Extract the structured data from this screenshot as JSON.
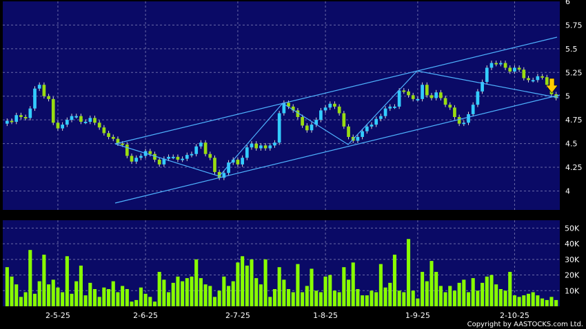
{
  "copyright": "Copyright by AASTOCKS.com Ltd.",
  "colors": {
    "background": "#000000",
    "panel": "#0a0a66",
    "grid": "#6a6aa8",
    "up_candle": "#33ccff",
    "down_candle": "#99dd11",
    "volume_bar": "#88ff00",
    "channel_line": "#4fb3ff",
    "arrow": "#ffcc00"
  },
  "chart_data": [
    {
      "type": "candlestick",
      "title": "",
      "ylim": [
        3.8,
        6.0
      ],
      "y_ticks": [
        "4",
        "4.25",
        "4.5",
        "4.75",
        "5",
        "5.25",
        "5.5",
        "5.75",
        "6"
      ],
      "x_ticks": [
        "2-5-25",
        "2-6-25",
        "2-7-25",
        "1-8-25",
        "1-9-25",
        "2-10-25"
      ],
      "grid": true,
      "close": [
        4.74,
        4.73,
        4.8,
        4.78,
        4.77,
        4.87,
        5.08,
        5.12,
        5.0,
        4.97,
        4.72,
        4.66,
        4.7,
        4.75,
        4.79,
        4.79,
        4.73,
        4.73,
        4.77,
        4.72,
        4.67,
        4.61,
        4.57,
        4.55,
        4.5,
        4.49,
        4.37,
        4.31,
        4.35,
        4.37,
        4.42,
        4.39,
        4.33,
        4.28,
        4.34,
        4.36,
        4.36,
        4.33,
        4.34,
        4.38,
        4.39,
        4.47,
        4.51,
        4.39,
        4.35,
        4.2,
        4.14,
        4.19,
        4.3,
        4.33,
        4.28,
        4.35,
        4.46,
        4.5,
        4.45,
        4.48,
        4.45,
        4.48,
        4.51,
        4.82,
        4.93,
        4.89,
        4.85,
        4.78,
        4.69,
        4.64,
        4.7,
        4.75,
        4.85,
        4.88,
        4.92,
        4.89,
        4.82,
        4.68,
        4.57,
        4.53,
        4.57,
        4.63,
        4.68,
        4.7,
        4.76,
        4.79,
        4.87,
        4.89,
        4.89,
        5.06,
        5.05,
        5.01,
        4.97,
        4.97,
        5.12,
        5.01,
        4.98,
        5.04,
        4.98,
        4.91,
        4.88,
        4.78,
        4.71,
        4.72,
        4.81,
        4.91,
        5.05,
        5.15,
        5.3,
        5.35,
        5.34,
        5.35,
        5.3,
        5.26,
        5.3,
        5.28,
        5.19,
        5.17,
        5.17,
        5.21,
        5.2,
        5.12,
        5.02,
        4.98
      ],
      "volume_chart": {
        "type": "bar",
        "ylim": [
          0,
          55000
        ],
        "y_ticks": [
          "10K",
          "20K",
          "30K",
          "40K",
          "50K"
        ],
        "values": [
          25000,
          19000,
          14000,
          6000,
          9000,
          36000,
          8000,
          16000,
          33000,
          14000,
          17000,
          12000,
          9000,
          32000,
          8000,
          16000,
          26000,
          7000,
          15000,
          11000,
          6000,
          12000,
          11000,
          16000,
          9000,
          13000,
          11000,
          3000,
          4000,
          12000,
          8000,
          6000,
          3000,
          22000,
          17000,
          9000,
          15000,
          19000,
          16000,
          18000,
          19000,
          30000,
          18000,
          14000,
          13000,
          6000,
          10000,
          19000,
          13000,
          16000,
          28000,
          32000,
          26000,
          30000,
          18000,
          14000,
          30000,
          6000,
          11000,
          25000,
          17000,
          11000,
          9000,
          27000,
          9000,
          13000,
          24000,
          10000,
          9000,
          19000,
          20000,
          10000,
          9000,
          25000,
          17000,
          28000,
          11000,
          7000,
          7000,
          10000,
          9000,
          27000,
          12000,
          15000,
          33000,
          10000,
          9000,
          43000,
          10000,
          5000,
          22000,
          16000,
          29000,
          22000,
          13000,
          9000,
          13000,
          10000,
          15000,
          17000,
          9000,
          18000,
          10000,
          15000,
          19000,
          20000,
          14000,
          11000,
          10000,
          22000,
          7000,
          6000,
          7000,
          8000,
          9000,
          7000,
          5000,
          4000,
          6000,
          4000
        ]
      }
    }
  ]
}
